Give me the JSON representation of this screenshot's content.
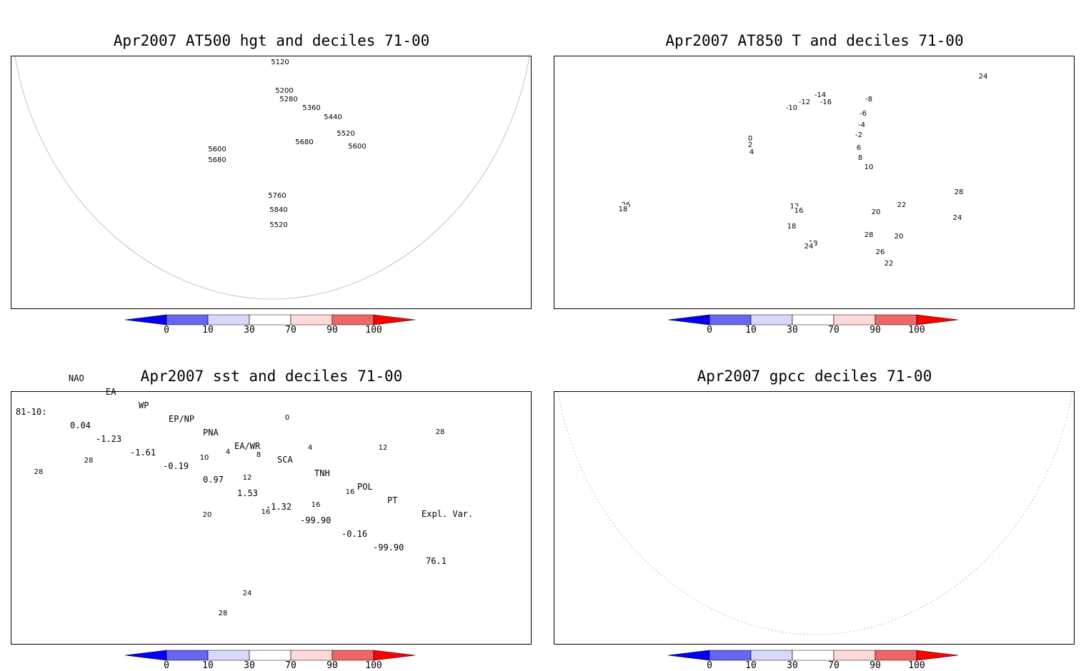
{
  "panels": [
    {
      "title": "Apr2007 AT500 hgt and deciles 71-00",
      "contour_labels": [
        "5120",
        "5200",
        "5280",
        "5360",
        "5440",
        "5520",
        "5600",
        "5680",
        "5760",
        "5840",
        "5520",
        "5600",
        "5680"
      ]
    },
    {
      "title": "Apr2007 AT850 T and deciles 71-00",
      "contour_labels": [
        "-16",
        "-14",
        "-12",
        "-10",
        "-8",
        "-6",
        "-4",
        "-2",
        "0",
        "2",
        "4",
        "6",
        "8",
        "10",
        "12",
        "16",
        "18",
        "18",
        "20",
        "20",
        "22",
        "24",
        "24",
        "26",
        "28",
        "28",
        "22",
        "24",
        "26",
        "18"
      ]
    },
    {
      "title": "Apr2007 sst and deciles 71-00",
      "contour_labels": [
        "28",
        "28",
        "20",
        "16",
        "12",
        "8",
        "4",
        "4",
        "10",
        "0",
        "16",
        "16",
        "12",
        "28",
        "24",
        "28"
      ]
    },
    {
      "title": "Apr2007 gpcc deciles 71-00",
      "contour_labels": []
    }
  ],
  "colorbar": {
    "tick_labels": [
      "0",
      "10",
      "30",
      "70",
      "90",
      "100"
    ],
    "colors": [
      "#0000ff",
      "#6666f0",
      "#d8d8f8",
      "#ffffff",
      "#ffd8d8",
      "#f06666",
      "#ff0000"
    ]
  },
  "indices": {
    "headers": [
      "NAO",
      "EA",
      "WP",
      "EP/NP",
      "PNA",
      "EA/WR",
      "SCA",
      "TNH",
      "POL",
      "PT",
      "Expl. Var."
    ],
    "row_label": "81-10:",
    "values": [
      "0.04",
      "-1.23",
      "-1.61",
      "-0.19",
      "0.97",
      "1.53",
      "-1.32",
      "-99.90",
      "-0.16",
      "-99.90",
      "76.1"
    ]
  },
  "colors": {
    "coast": "#20c0c0",
    "contour": "#000000",
    "grid": "#9a9a9a"
  }
}
